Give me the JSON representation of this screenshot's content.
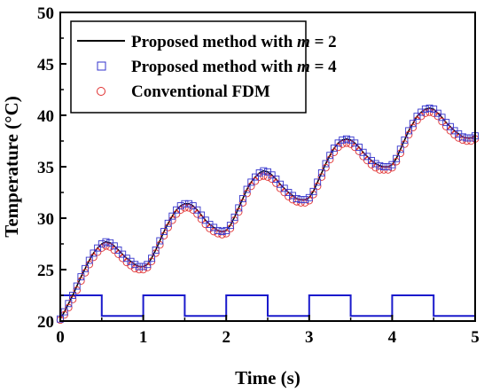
{
  "chart_data": {
    "type": "scatter",
    "xlabel": "Time (s)",
    "ylabel": "Temperature (°C)",
    "xlim": [
      0,
      5
    ],
    "ylim": [
      20,
      50
    ],
    "xticks": [
      "0",
      "1",
      "2",
      "3",
      "4",
      "5"
    ],
    "yticks": [
      "20",
      "25",
      "30",
      "35",
      "40",
      "45",
      "50"
    ],
    "grid": false,
    "legend_position": "top-left",
    "series": [
      {
        "name_prefix": "Proposed method with ",
        "name_var": "m",
        "name_suffix": " = 2",
        "color": "#000000",
        "marker": "line",
        "x": [
          0,
          0.05,
          0.1,
          0.15,
          0.2,
          0.25,
          0.3,
          0.35,
          0.4,
          0.45,
          0.5,
          0.55,
          0.6,
          0.65,
          0.7,
          0.75,
          0.8,
          0.85,
          0.9,
          0.95,
          1.0,
          1.05,
          1.1,
          1.15,
          1.2,
          1.25,
          1.3,
          1.35,
          1.4,
          1.45,
          1.5,
          1.55,
          1.6,
          1.65,
          1.7,
          1.75,
          1.8,
          1.85,
          1.9,
          1.95,
          2.0,
          2.05,
          2.1,
          2.15,
          2.2,
          2.25,
          2.3,
          2.35,
          2.4,
          2.45,
          2.5,
          2.55,
          2.6,
          2.65,
          2.7,
          2.75,
          2.8,
          2.85,
          2.9,
          2.95,
          3.0,
          3.05,
          3.1,
          3.15,
          3.2,
          3.25,
          3.3,
          3.35,
          3.4,
          3.45,
          3.5,
          3.55,
          3.6,
          3.65,
          3.7,
          3.75,
          3.8,
          3.85,
          3.9,
          3.95,
          4.0,
          4.05,
          4.1,
          4.15,
          4.2,
          4.25,
          4.3,
          4.35,
          4.4,
          4.45,
          4.5,
          4.55,
          4.6,
          4.65,
          4.7,
          4.75,
          4.8,
          4.85,
          4.9,
          4.95,
          5.0
        ],
        "y": [
          20.2,
          20.9,
          21.7,
          22.5,
          23.4,
          24.3,
          25.1,
          25.9,
          26.6,
          27.1,
          27.5,
          27.7,
          27.6,
          27.3,
          26.9,
          26.5,
          26.1,
          25.8,
          25.5,
          25.3,
          25.3,
          25.5,
          26.1,
          26.9,
          27.8,
          28.7,
          29.5,
          30.2,
          30.8,
          31.2,
          31.4,
          31.4,
          31.2,
          30.8,
          30.3,
          29.8,
          29.4,
          29.1,
          28.8,
          28.7,
          28.8,
          29.3,
          30.1,
          31.0,
          31.9,
          32.8,
          33.5,
          34.0,
          34.4,
          34.6,
          34.5,
          34.2,
          33.8,
          33.3,
          32.9,
          32.5,
          32.2,
          31.9,
          31.8,
          31.8,
          32.0,
          32.6,
          33.5,
          34.4,
          35.3,
          36.1,
          36.8,
          37.3,
          37.6,
          37.7,
          37.6,
          37.3,
          36.9,
          36.4,
          36.0,
          35.6,
          35.3,
          35.1,
          35.0,
          35.0,
          35.2,
          35.8,
          36.7,
          37.6,
          38.5,
          39.2,
          39.9,
          40.3,
          40.6,
          40.7,
          40.6,
          40.2,
          39.8,
          39.3,
          38.9,
          38.5,
          38.2,
          37.9,
          37.8,
          37.8,
          38.0
        ]
      },
      {
        "name_prefix": "Proposed method with ",
        "name_var": "m",
        "name_suffix": " = 4",
        "color": "#3333cc",
        "marker": "square",
        "x": [
          0,
          0.05,
          0.1,
          0.15,
          0.2,
          0.25,
          0.3,
          0.35,
          0.4,
          0.45,
          0.5,
          0.55,
          0.6,
          0.65,
          0.7,
          0.75,
          0.8,
          0.85,
          0.9,
          0.95,
          1.0,
          1.05,
          1.1,
          1.15,
          1.2,
          1.25,
          1.3,
          1.35,
          1.4,
          1.45,
          1.5,
          1.55,
          1.6,
          1.65,
          1.7,
          1.75,
          1.8,
          1.85,
          1.9,
          1.95,
          2.0,
          2.05,
          2.1,
          2.15,
          2.2,
          2.25,
          2.3,
          2.35,
          2.4,
          2.45,
          2.5,
          2.55,
          2.6,
          2.65,
          2.7,
          2.75,
          2.8,
          2.85,
          2.9,
          2.95,
          3.0,
          3.05,
          3.1,
          3.15,
          3.2,
          3.25,
          3.3,
          3.35,
          3.4,
          3.45,
          3.5,
          3.55,
          3.6,
          3.65,
          3.7,
          3.75,
          3.8,
          3.85,
          3.9,
          3.95,
          4.0,
          4.05,
          4.1,
          4.15,
          4.2,
          4.25,
          4.3,
          4.35,
          4.4,
          4.45,
          4.5,
          4.55,
          4.6,
          4.65,
          4.7,
          4.75,
          4.8,
          4.85,
          4.9,
          4.95,
          5.0
        ],
        "y": [
          20.2,
          20.9,
          21.7,
          22.5,
          23.4,
          24.3,
          25.1,
          25.9,
          26.6,
          27.1,
          27.5,
          27.7,
          27.6,
          27.3,
          26.9,
          26.5,
          26.1,
          25.8,
          25.5,
          25.3,
          25.3,
          25.5,
          26.1,
          26.9,
          27.8,
          28.7,
          29.5,
          30.2,
          30.8,
          31.2,
          31.4,
          31.4,
          31.2,
          30.8,
          30.3,
          29.8,
          29.4,
          29.1,
          28.8,
          28.7,
          28.8,
          29.3,
          30.1,
          31.0,
          31.9,
          32.8,
          33.5,
          34.0,
          34.4,
          34.6,
          34.5,
          34.2,
          33.8,
          33.3,
          32.9,
          32.5,
          32.2,
          31.9,
          31.8,
          31.8,
          32.0,
          32.6,
          33.5,
          34.4,
          35.3,
          36.1,
          36.8,
          37.3,
          37.6,
          37.7,
          37.6,
          37.3,
          36.9,
          36.4,
          36.0,
          35.6,
          35.3,
          35.1,
          35.0,
          35.0,
          35.2,
          35.8,
          36.7,
          37.6,
          38.5,
          39.2,
          39.9,
          40.3,
          40.6,
          40.7,
          40.6,
          40.2,
          39.8,
          39.3,
          38.9,
          38.5,
          38.2,
          37.9,
          37.8,
          37.8,
          38.0
        ]
      },
      {
        "name": "Conventional FDM",
        "color": "#e03030",
        "marker": "circle",
        "x": [
          0,
          0.05,
          0.1,
          0.15,
          0.2,
          0.25,
          0.3,
          0.35,
          0.4,
          0.45,
          0.5,
          0.55,
          0.6,
          0.65,
          0.7,
          0.75,
          0.8,
          0.85,
          0.9,
          0.95,
          1.0,
          1.05,
          1.1,
          1.15,
          1.2,
          1.25,
          1.3,
          1.35,
          1.4,
          1.45,
          1.5,
          1.55,
          1.6,
          1.65,
          1.7,
          1.75,
          1.8,
          1.85,
          1.9,
          1.95,
          2.0,
          2.05,
          2.1,
          2.15,
          2.2,
          2.25,
          2.3,
          2.35,
          2.4,
          2.45,
          2.5,
          2.55,
          2.6,
          2.65,
          2.7,
          2.75,
          2.8,
          2.85,
          2.9,
          2.95,
          3.0,
          3.05,
          3.1,
          3.15,
          3.2,
          3.25,
          3.3,
          3.35,
          3.4,
          3.45,
          3.5,
          3.55,
          3.6,
          3.65,
          3.7,
          3.75,
          3.8,
          3.85,
          3.9,
          3.95,
          4.0,
          4.05,
          4.1,
          4.15,
          4.2,
          4.25,
          4.3,
          4.35,
          4.4,
          4.45,
          4.5,
          4.55,
          4.6,
          4.65,
          4.7,
          4.75,
          4.8,
          4.85,
          4.9,
          4.95,
          5.0
        ],
        "y": [
          20.1,
          20.6,
          21.3,
          22.1,
          23.0,
          23.9,
          24.7,
          25.5,
          26.2,
          26.7,
          27.1,
          27.3,
          27.2,
          26.9,
          26.5,
          26.1,
          25.7,
          25.4,
          25.1,
          25.0,
          25.0,
          25.2,
          25.8,
          26.6,
          27.4,
          28.3,
          29.1,
          29.8,
          30.4,
          30.8,
          31.0,
          31.0,
          30.8,
          30.4,
          29.9,
          29.4,
          29.0,
          28.7,
          28.5,
          28.4,
          28.5,
          29.0,
          29.8,
          30.6,
          31.5,
          32.4,
          33.1,
          33.6,
          34.0,
          34.1,
          34.0,
          33.8,
          33.4,
          32.9,
          32.5,
          32.1,
          31.8,
          31.6,
          31.5,
          31.5,
          31.7,
          32.3,
          33.1,
          34.0,
          34.9,
          35.7,
          36.4,
          36.9,
          37.2,
          37.3,
          37.2,
          36.9,
          36.5,
          36.0,
          35.6,
          35.2,
          34.9,
          34.7,
          34.7,
          34.7,
          34.9,
          35.5,
          36.3,
          37.2,
          38.1,
          38.8,
          39.5,
          39.9,
          40.2,
          40.3,
          40.2,
          39.9,
          39.4,
          38.9,
          38.5,
          38.1,
          37.8,
          37.6,
          37.5,
          37.5,
          37.7
        ]
      },
      {
        "name": "",
        "color": "#1a1acc",
        "marker": "step",
        "x": [
          0,
          0.5,
          0.5,
          1.0,
          1.0,
          1.5,
          1.5,
          2.0,
          2.0,
          2.5,
          2.5,
          3.0,
          3.0,
          3.5,
          3.5,
          4.0,
          4.0,
          4.5,
          4.5,
          5.0
        ],
        "y": [
          22.5,
          22.5,
          20.5,
          20.5,
          22.5,
          22.5,
          20.5,
          20.5,
          22.5,
          22.5,
          20.5,
          20.5,
          22.5,
          22.5,
          20.5,
          20.5,
          22.5,
          22.5,
          20.5,
          20.5
        ]
      }
    ]
  }
}
